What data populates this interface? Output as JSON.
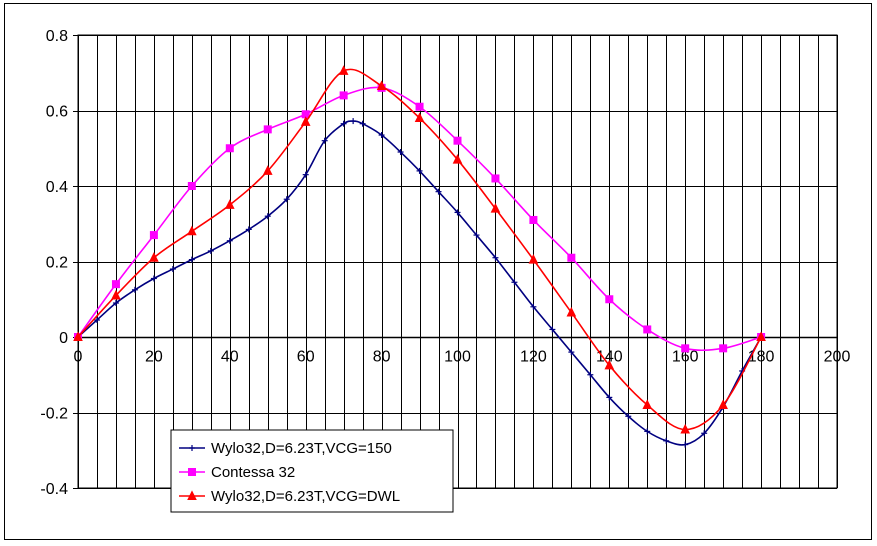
{
  "chart_data": {
    "type": "line",
    "title": "",
    "xlabel": "",
    "ylabel": "",
    "xlim": [
      0,
      200
    ],
    "ylim": [
      -0.4,
      0.8
    ],
    "x_major_ticks": [
      0,
      20,
      40,
      60,
      80,
      100,
      120,
      140,
      160,
      180,
      200
    ],
    "y_major_ticks": [
      -0.4,
      -0.2,
      0,
      0.2,
      0.4,
      0.6,
      0.8
    ],
    "x_tick_labels": [
      "0",
      "20",
      "40",
      "60",
      "80",
      "100",
      "120",
      "140",
      "160",
      "180",
      "200"
    ],
    "y_tick_labels": [
      "-0.4",
      "-0.2",
      "0",
      "0.2",
      "0.4",
      "0.6",
      "0.8"
    ],
    "x_minor_step": 5,
    "grid": true,
    "legend_position": "bottom-left",
    "series": [
      {
        "name": "Wylo32,D=6.23T,VCG=150",
        "color": "#000080",
        "marker": "plus",
        "x": [
          0,
          5,
          10,
          15,
          20,
          25,
          30,
          35,
          40,
          45,
          50,
          55,
          60,
          65,
          70,
          72.5,
          75,
          80,
          85,
          90,
          95,
          100,
          105,
          110,
          115,
          120,
          125,
          130,
          135,
          140,
          145,
          150,
          155,
          160,
          165,
          170,
          175,
          180
        ],
        "y": [
          0,
          0.045,
          0.09,
          0.125,
          0.155,
          0.18,
          0.205,
          0.228,
          0.255,
          0.285,
          0.32,
          0.365,
          0.43,
          0.52,
          0.565,
          0.572,
          0.565,
          0.535,
          0.49,
          0.44,
          0.385,
          0.33,
          0.27,
          0.21,
          0.145,
          0.08,
          0.02,
          -0.04,
          -0.1,
          -0.16,
          -0.21,
          -0.25,
          -0.275,
          -0.285,
          -0.255,
          -0.185,
          -0.09,
          0
        ]
      },
      {
        "name": "Contessa 32",
        "color": "#FF00FF",
        "marker": "square",
        "x": [
          0,
          10,
          20,
          30,
          40,
          50,
          60,
          70,
          80,
          90,
          100,
          110,
          120,
          130,
          140,
          150,
          160,
          170,
          180
        ],
        "y": [
          0,
          0.14,
          0.27,
          0.4,
          0.5,
          0.55,
          0.59,
          0.64,
          0.66,
          0.61,
          0.52,
          0.42,
          0.31,
          0.21,
          0.1,
          0.02,
          -0.03,
          -0.03,
          0
        ]
      },
      {
        "name": "Wylo32,D=6.23T,VCG=DWL",
        "color": "#FF0000",
        "marker": "triangle",
        "x": [
          0,
          10,
          20,
          30,
          40,
          50,
          60,
          70,
          80,
          90,
          100,
          110,
          120,
          130,
          140,
          150,
          160,
          170,
          180
        ],
        "y": [
          0,
          0.11,
          0.21,
          0.28,
          0.35,
          0.44,
          0.57,
          0.705,
          0.665,
          0.58,
          0.47,
          0.34,
          0.205,
          0.065,
          -0.075,
          -0.18,
          -0.245,
          -0.18,
          0
        ]
      }
    ]
  }
}
